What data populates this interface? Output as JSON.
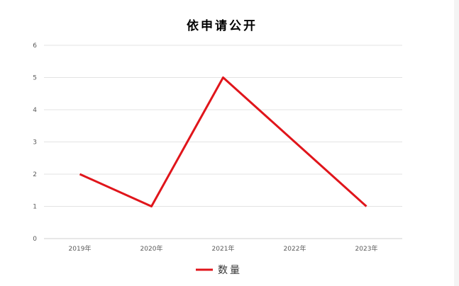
{
  "chart_data": {
    "type": "line",
    "title": "依申请公开",
    "categories": [
      "2019年",
      "2020年",
      "2021年",
      "2022年",
      "2023年"
    ],
    "series": [
      {
        "name": "数量",
        "values": [
          2,
          1,
          5,
          3,
          1
        ],
        "color": "#e0151b"
      }
    ],
    "ylim": [
      0,
      6
    ],
    "yticks": [
      "0",
      "1",
      "2",
      "3",
      "4",
      "5",
      "6"
    ],
    "grid": true,
    "legend": "bottom"
  }
}
